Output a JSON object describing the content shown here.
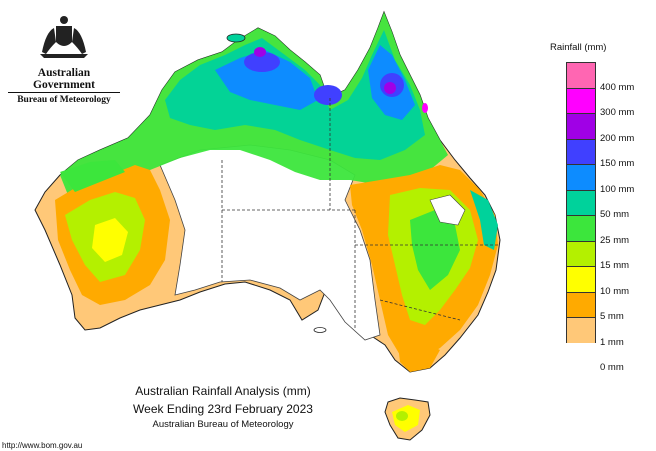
{
  "header": {
    "government": "Australian Government",
    "bureau": "Bureau of Meteorology"
  },
  "legend": {
    "title": "Rainfall (mm)",
    "items": [
      {
        "label": "400 mm",
        "color": "#ff66b2"
      },
      {
        "label": "300 mm",
        "color": "#ff00ff"
      },
      {
        "label": "200 mm",
        "color": "#a000e6"
      },
      {
        "label": "150 mm",
        "color": "#4040ff"
      },
      {
        "label": "100 mm",
        "color": "#0d8cff"
      },
      {
        "label": "50 mm",
        "color": "#00d29b"
      },
      {
        "label": "25 mm",
        "color": "#3ce63c"
      },
      {
        "label": "15 mm",
        "color": "#b4f000"
      },
      {
        "label": "10 mm",
        "color": "#ffff00"
      },
      {
        "label": "5 mm",
        "color": "#ffaa00"
      },
      {
        "label": "1 mm",
        "color": "#ffc878"
      },
      {
        "label": "0 mm",
        "color": "#ffffff"
      }
    ]
  },
  "caption": {
    "line1": "Australian Rainfall Analysis (mm)",
    "line2": "Week Ending 23rd February 2023",
    "line3": "Australian Bureau of Meteorology"
  },
  "footer": {
    "url": "http://www.bom.gov.au"
  }
}
